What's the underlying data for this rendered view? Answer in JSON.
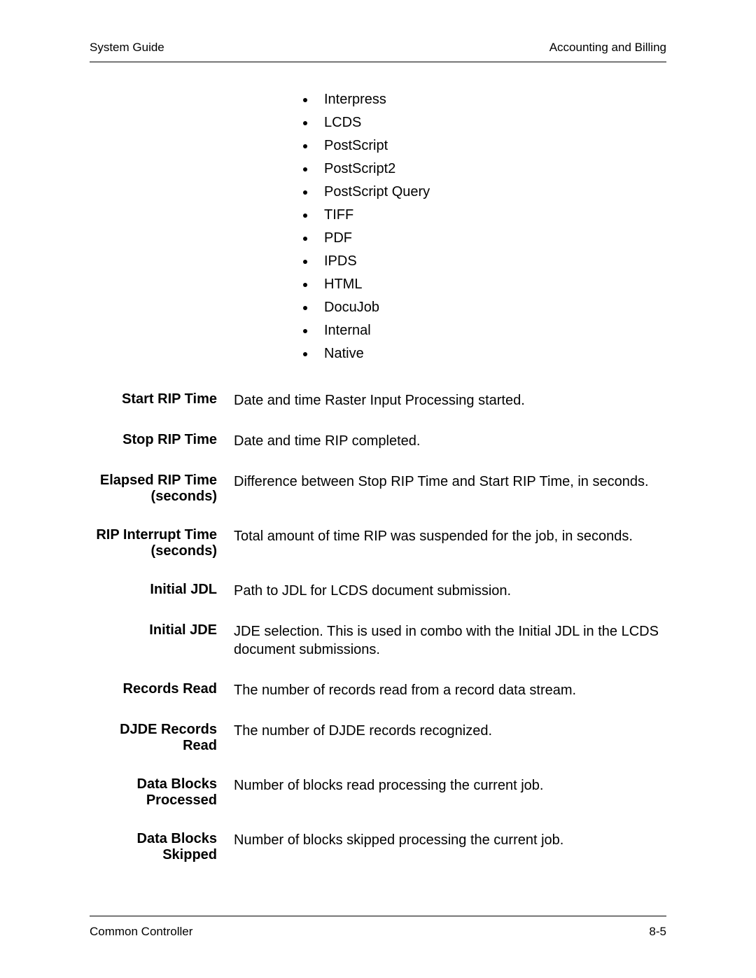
{
  "header": {
    "left": "System Guide",
    "right": "Accounting and Billing"
  },
  "bullets": {
    "items": [
      "Interpress",
      "LCDS",
      "PostScript",
      "PostScript2",
      "PostScript Query",
      "TIFF",
      "PDF",
      "IPDS",
      "HTML",
      "DocuJob",
      "Internal",
      "Native"
    ]
  },
  "definitions": {
    "items": [
      {
        "term": "Start RIP Time",
        "desc": "Date and time Raster Input Processing started."
      },
      {
        "term": "Stop RIP Time",
        "desc": "Date and time RIP completed."
      },
      {
        "term": "Elapsed RIP Time (seconds)",
        "desc": " Difference between Stop RIP Time and Start RIP Time, in seconds."
      },
      {
        "term": "RIP Interrupt Time (seconds)",
        "desc": "Total amount of time RIP was suspended for the job, in seconds."
      },
      {
        "term": "Initial JDL",
        "desc": "Path to JDL for LCDS document submission."
      },
      {
        "term": "Initial JDE",
        "desc": "JDE selection. This is used in combo with the Initial JDL in the LCDS document submissions."
      },
      {
        "term": "Records Read",
        "desc": "The number of records read from a record data stream."
      },
      {
        "term": "DJDE Records Read",
        "desc": "The number of DJDE records recognized."
      },
      {
        "term": "Data Blocks Processed",
        "desc": "Number of blocks read processing the current job."
      },
      {
        "term": "Data Blocks Skipped",
        "desc": "Number of blocks skipped processing the current job."
      }
    ]
  },
  "footer": {
    "left": "Common Controller",
    "right": "8-5"
  }
}
